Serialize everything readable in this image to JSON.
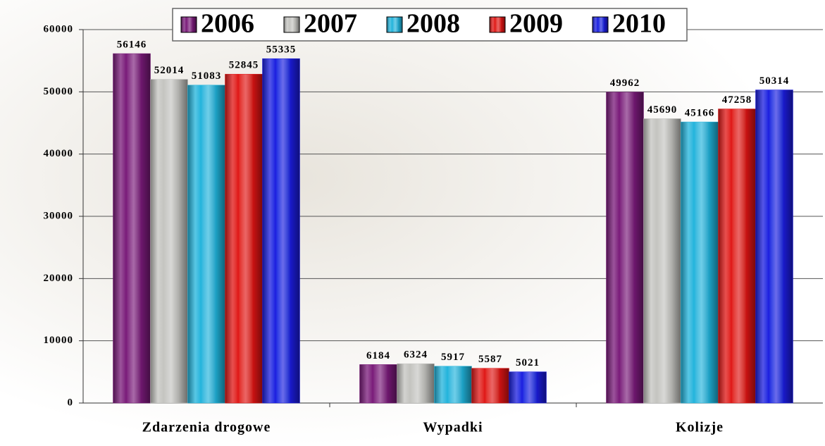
{
  "chart_data": {
    "type": "bar",
    "categories": [
      "Zdarzenia drogowe",
      "Wypadki",
      "Kolizje"
    ],
    "series": [
      {
        "name": "2006",
        "color": "#7a1a7a",
        "values": [
          56146,
          6184,
          49962
        ]
      },
      {
        "name": "2007",
        "color": "#c4c4c0",
        "values": [
          52014,
          6324,
          45690
        ]
      },
      {
        "name": "2008",
        "color": "#20b4dc",
        "values": [
          51083,
          5917,
          45166
        ]
      },
      {
        "name": "2009",
        "color": "#e01414",
        "values": [
          52845,
          5587,
          47258
        ]
      },
      {
        "name": "2010",
        "color": "#1c1ce0",
        "values": [
          55335,
          5021,
          50314
        ]
      }
    ],
    "ylim": [
      0,
      60000
    ],
    "yticks": [
      0,
      10000,
      20000,
      30000,
      40000,
      50000,
      60000
    ],
    "grid": true,
    "legend": "top"
  }
}
